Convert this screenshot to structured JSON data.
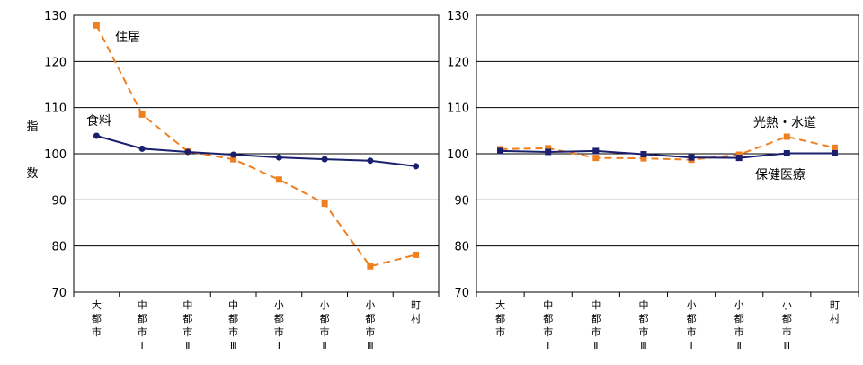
{
  "chart_data": [
    {
      "type": "line",
      "ylabel": [
        "指",
        "数"
      ],
      "ylim": [
        70,
        130
      ],
      "yticks": [
        70,
        80,
        90,
        100,
        110,
        120,
        130
      ],
      "grid": true,
      "categories": [
        [
          "大",
          "都",
          "市"
        ],
        [
          "中",
          "都",
          "市",
          "Ⅰ"
        ],
        [
          "中",
          "都",
          "市",
          "Ⅱ"
        ],
        [
          "中",
          "都",
          "市",
          "Ⅲ"
        ],
        [
          "小",
          "都",
          "市",
          "Ⅰ"
        ],
        [
          "小",
          "都",
          "市",
          "Ⅱ"
        ],
        [
          "小",
          "都",
          "市",
          "Ⅲ"
        ],
        [
          "町",
          "村"
        ]
      ],
      "series": [
        {
          "name": "住居",
          "style": "dashed",
          "marker": "square",
          "color": "#F07F1F",
          "values": [
            127.8,
            108.5,
            100.5,
            98.8,
            94.4,
            89.2,
            75.6,
            78.1
          ]
        },
        {
          "name": "食料",
          "style": "solid",
          "marker": "circle",
          "color": "#1A1F6E",
          "values": [
            103.9,
            101.1,
            100.4,
            99.8,
            99.2,
            98.8,
            98.5,
            97.3
          ]
        }
      ]
    },
    {
      "type": "line",
      "ylabel": [],
      "ylim": [
        70,
        130
      ],
      "yticks": [
        70,
        80,
        90,
        100,
        110,
        120,
        130
      ],
      "grid": true,
      "categories": [
        [
          "大",
          "都",
          "市"
        ],
        [
          "中",
          "都",
          "市",
          "Ⅰ"
        ],
        [
          "中",
          "都",
          "市",
          "Ⅱ"
        ],
        [
          "中",
          "都",
          "市",
          "Ⅲ"
        ],
        [
          "小",
          "都",
          "市",
          "Ⅰ"
        ],
        [
          "小",
          "都",
          "市",
          "Ⅱ"
        ],
        [
          "小",
          "都",
          "市",
          "Ⅲ"
        ],
        [
          "町",
          "村"
        ]
      ],
      "series": [
        {
          "name": "光熱・水道",
          "style": "dashed",
          "marker": "square",
          "color": "#F07F1F",
          "values": [
            101.0,
            101.2,
            99.1,
            99.0,
            98.7,
            99.8,
            103.7,
            101.3
          ]
        },
        {
          "name": "保健医療",
          "style": "solid",
          "marker": "square",
          "color": "#1A1F6E",
          "values": [
            100.6,
            100.4,
            100.6,
            99.9,
            99.2,
            99.1,
            100.1,
            100.1
          ]
        }
      ]
    }
  ]
}
